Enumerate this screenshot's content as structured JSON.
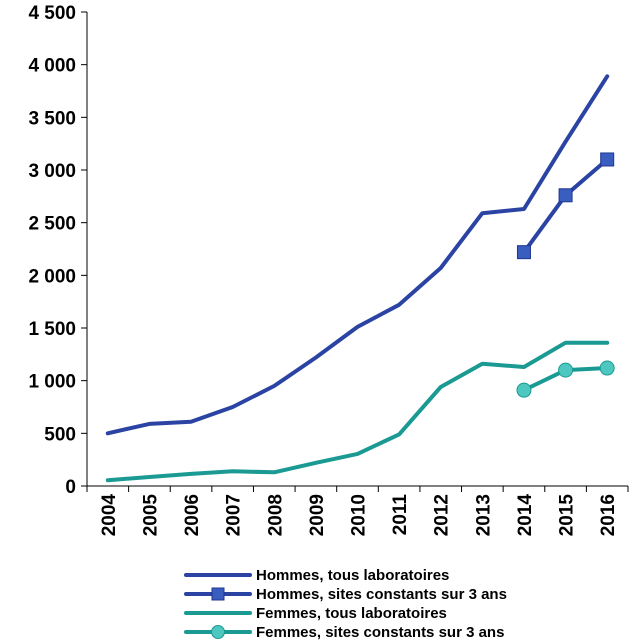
{
  "chart_data": {
    "type": "line",
    "x": [
      "2004",
      "2005",
      "2006",
      "2007",
      "2008",
      "2009",
      "2010",
      "2011",
      "2012",
      "2013",
      "2014",
      "2015",
      "2016"
    ],
    "y_ticks": [
      "0",
      "500",
      "1 000",
      "1 500",
      "2 000",
      "2 500",
      "3 000",
      "3 500",
      "4 000",
      "4 500"
    ],
    "ylim": [
      0,
      4500
    ],
    "grid": false,
    "legend_position": "bottom",
    "series": [
      {
        "name": "Hommes, tous laboratoires",
        "color": "#2b44a4",
        "marker": "none",
        "values": [
          500,
          590,
          610,
          750,
          950,
          1220,
          1510,
          1720,
          2070,
          2590,
          2630,
          3270,
          3890
        ]
      },
      {
        "name": "Hommes, sites constants sur 3 ans",
        "color": "#2b44a4",
        "marker": "square",
        "values": [
          null,
          null,
          null,
          null,
          null,
          null,
          null,
          null,
          null,
          null,
          2220,
          2760,
          3100
        ]
      },
      {
        "name": "Femmes, tous laboratoires",
        "color": "#1a9a92",
        "marker": "none",
        "values": [
          55,
          85,
          115,
          140,
          130,
          220,
          305,
          490,
          940,
          1160,
          1130,
          1360,
          1360
        ]
      },
      {
        "name": "Femmes, sites constants sur 3 ans",
        "color": "#1a9a92",
        "marker": "circle",
        "values": [
          null,
          null,
          null,
          null,
          null,
          null,
          null,
          null,
          null,
          null,
          910,
          1100,
          1120
        ]
      }
    ]
  }
}
